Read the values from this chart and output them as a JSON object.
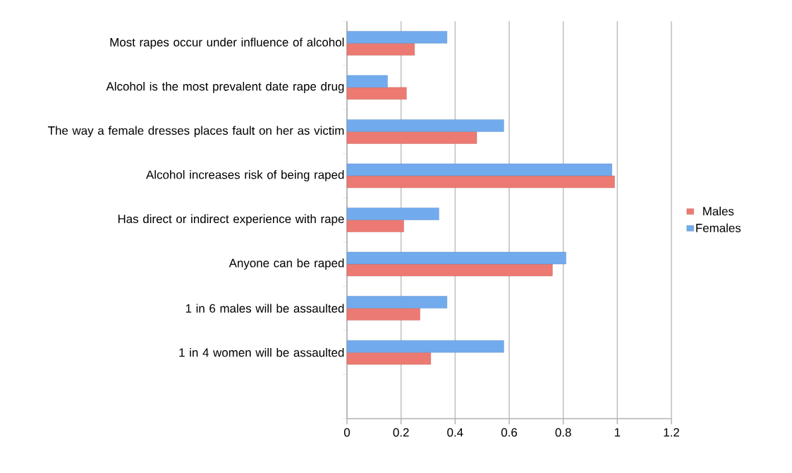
{
  "chart_data": {
    "type": "bar",
    "orientation": "horizontal",
    "categories": [
      "Most rapes occur under influence of alcohol",
      "Alcohol is the most prevalent date rape drug",
      "The way a female dresses places fault on her as victim",
      "Alcohol increases risk of being raped",
      "Has direct or indirect experience with rape",
      "Anyone can be raped",
      "1 in 6 males will be assaulted",
      "1 in 4 women will be assaulted",
      null
    ],
    "series": [
      {
        "name": "Males",
        "color": "#ec7a72",
        "values": [
          0.25,
          0.22,
          0.48,
          0.99,
          0.21,
          0.76,
          0.27,
          0.31,
          null
        ]
      },
      {
        "name": "Females",
        "color": "#72aaee",
        "values": [
          0.37,
          0.15,
          0.58,
          0.98,
          0.34,
          0.81,
          0.37,
          0.58,
          null
        ]
      }
    ],
    "xlim": [
      0,
      1.2
    ],
    "xticks": [
      0,
      0.2,
      0.4,
      0.6,
      0.8,
      1,
      1.2
    ],
    "grid": "x",
    "legend": "right"
  }
}
